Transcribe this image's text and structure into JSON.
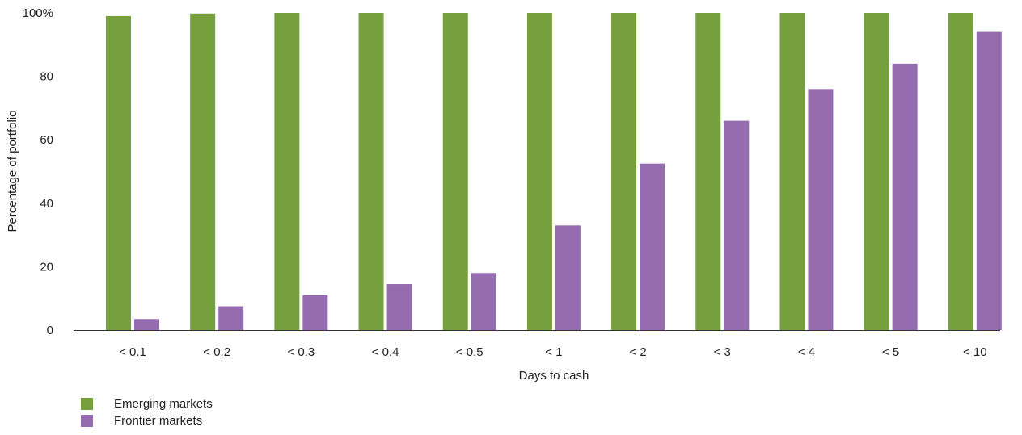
{
  "chart_data": {
    "type": "bar",
    "categories": [
      "< 0.1",
      "< 0.2",
      "< 0.3",
      "< 0.4",
      "< 0.5",
      "< 1",
      "< 2",
      "< 3",
      "< 4",
      "< 5",
      "< 10"
    ],
    "series": [
      {
        "name": "Emerging markets",
        "color": "#76a03e",
        "values": [
          99,
          99.8,
          100,
          100,
          100,
          100,
          100,
          100,
          100,
          100,
          100
        ]
      },
      {
        "name": "Frontier markets",
        "color": "#956cb0",
        "values": [
          3.5,
          7.5,
          11,
          14.5,
          18,
          33,
          52.5,
          66,
          76,
          84,
          94
        ]
      }
    ],
    "xlabel": "Days to cash",
    "ylabel": "Percentage of portfolio",
    "ylim": [
      0,
      100
    ],
    "yticks": [
      {
        "value": 0,
        "label": "0"
      },
      {
        "value": 20,
        "label": "20"
      },
      {
        "value": 40,
        "label": "40"
      },
      {
        "value": 60,
        "label": "60"
      },
      {
        "value": 80,
        "label": "80"
      },
      {
        "value": 100,
        "label": "100%"
      }
    ],
    "grid": false,
    "legend_position": "bottom-left"
  }
}
